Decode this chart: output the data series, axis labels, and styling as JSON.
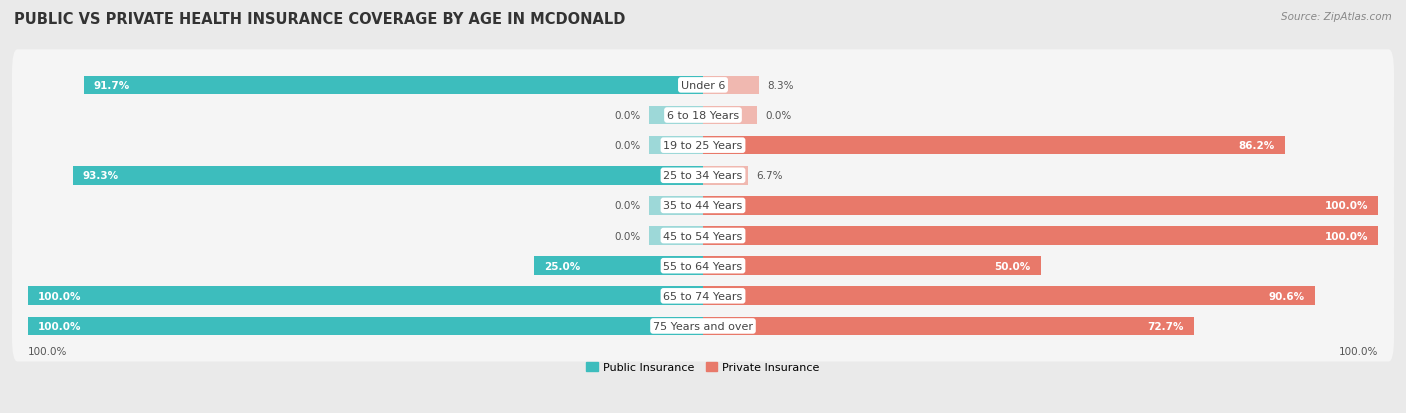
{
  "title": "PUBLIC VS PRIVATE HEALTH INSURANCE COVERAGE BY AGE IN MCDONALD",
  "source": "Source: ZipAtlas.com",
  "categories": [
    "Under 6",
    "6 to 18 Years",
    "19 to 25 Years",
    "25 to 34 Years",
    "35 to 44 Years",
    "45 to 54 Years",
    "55 to 64 Years",
    "65 to 74 Years",
    "75 Years and over"
  ],
  "public_values": [
    91.7,
    0.0,
    0.0,
    93.3,
    0.0,
    0.0,
    25.0,
    100.0,
    100.0
  ],
  "private_values": [
    8.3,
    0.0,
    86.2,
    6.7,
    100.0,
    100.0,
    50.0,
    90.6,
    72.7
  ],
  "public_color": "#3dbdbd",
  "private_color": "#e8796a",
  "public_color_light": "#9dd8d8",
  "private_color_light": "#f0b8b0",
  "background_color": "#eaeaea",
  "row_bg_color": "#f5f5f5",
  "title_fontsize": 10.5,
  "source_fontsize": 7.5,
  "label_fontsize": 8,
  "value_fontsize": 7.5,
  "max_value": 100.0,
  "legend_labels": [
    "Public Insurance",
    "Private Insurance"
  ],
  "stub_size": 8.0
}
